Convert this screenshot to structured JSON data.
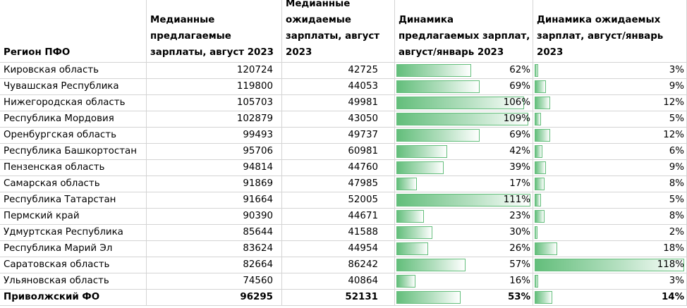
{
  "headers": {
    "region": "Регион ПФО",
    "offered": [
      "Медианные",
      "предлагаемые",
      "зарплаты, август 2023"
    ],
    "expected": [
      "Медианные",
      "ожидаемые",
      "зарплаты, август",
      "2023"
    ],
    "dyn_offered": [
      "Динамика",
      "предлагаемых зарплат,",
      "август/январь 2023"
    ],
    "dyn_expected": [
      "Динамика ожидаемых",
      "зарплат, август/январь",
      "2023"
    ]
  },
  "rows": [
    {
      "region": "Кировская область",
      "offered": "120724",
      "expected": "42725",
      "dyn_offered": "62%",
      "dyn_expected": "3%",
      "dyn_offered_value": 62,
      "dyn_expected_value": 3
    },
    {
      "region": "Чувашская Республика",
      "offered": "119800",
      "expected": "44053",
      "dyn_offered": "69%",
      "dyn_expected": "9%",
      "dyn_offered_value": 69,
      "dyn_expected_value": 9
    },
    {
      "region": "Нижегородская область",
      "offered": "105703",
      "expected": "49981",
      "dyn_offered": "106%",
      "dyn_expected": "12%",
      "dyn_offered_value": 106,
      "dyn_expected_value": 12
    },
    {
      "region": "Республика Мордовия",
      "offered": "102879",
      "expected": "43050",
      "dyn_offered": "109%",
      "dyn_expected": "5%",
      "dyn_offered_value": 109,
      "dyn_expected_value": 5
    },
    {
      "region": "Оренбургская область",
      "offered": "99493",
      "expected": "49737",
      "dyn_offered": "69%",
      "dyn_expected": "12%",
      "dyn_offered_value": 69,
      "dyn_expected_value": 12
    },
    {
      "region": "Республика Башкортостан",
      "offered": "95706",
      "expected": "60981",
      "dyn_offered": "42%",
      "dyn_expected": "6%",
      "dyn_offered_value": 42,
      "dyn_expected_value": 6
    },
    {
      "region": "Пензенская область",
      "offered": "94814",
      "expected": "44760",
      "dyn_offered": "39%",
      "dyn_expected": "9%",
      "dyn_offered_value": 39,
      "dyn_expected_value": 9
    },
    {
      "region": "Самарская область",
      "offered": "91869",
      "expected": "47985",
      "dyn_offered": "17%",
      "dyn_expected": "8%",
      "dyn_offered_value": 17,
      "dyn_expected_value": 8
    },
    {
      "region": "Республика Татарстан",
      "offered": "91664",
      "expected": "52005",
      "dyn_offered": "111%",
      "dyn_expected": "5%",
      "dyn_offered_value": 111,
      "dyn_expected_value": 5
    },
    {
      "region": "Пермский край",
      "offered": "90390",
      "expected": "44671",
      "dyn_offered": "23%",
      "dyn_expected": "8%",
      "dyn_offered_value": 23,
      "dyn_expected_value": 8
    },
    {
      "region": "Удмуртская Республика",
      "offered": "85644",
      "expected": "41588",
      "dyn_offered": "30%",
      "dyn_expected": "2%",
      "dyn_offered_value": 30,
      "dyn_expected_value": 2
    },
    {
      "region": "Республика Марий Эл",
      "offered": "83624",
      "expected": "44954",
      "dyn_offered": "26%",
      "dyn_expected": "18%",
      "dyn_offered_value": 26,
      "dyn_expected_value": 18
    },
    {
      "region": "Саратовская область",
      "offered": "82664",
      "expected": "86242",
      "dyn_offered": "57%",
      "dyn_expected": "118%",
      "dyn_offered_value": 57,
      "dyn_expected_value": 118
    },
    {
      "region": "Ульяновская область",
      "offered": "74560",
      "expected": "40864",
      "dyn_offered": "16%",
      "dyn_expected": "3%",
      "dyn_offered_value": 16,
      "dyn_expected_value": 3
    }
  ],
  "total": {
    "region": "Приволжский ФО",
    "offered": "96295",
    "expected": "52131",
    "dyn_offered": "53%",
    "dyn_expected": "14%",
    "dyn_offered_value": 53,
    "dyn_expected_value": 14
  },
  "colors": {
    "databar": "#63be7b",
    "grid": "#d4d4d4"
  }
}
